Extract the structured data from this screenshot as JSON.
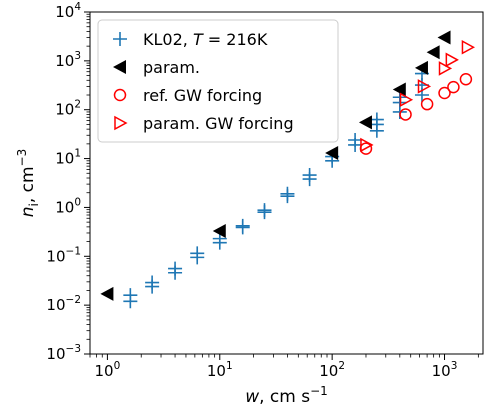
{
  "chart_data": {
    "type": "scatter",
    "xscale": "log",
    "yscale": "log",
    "xlim": [
      0.7,
      2200
    ],
    "ylim": [
      0.001,
      10000
    ],
    "xlabel": {
      "var": "w",
      "rest": ", cm s",
      "sup": "−1"
    },
    "ylabel": {
      "var": "n",
      "sub": "i",
      "rest": ", cm",
      "sup": "−3"
    },
    "xticks": [
      {
        "value": 1,
        "base": "10",
        "exp": "0"
      },
      {
        "value": 10,
        "base": "10",
        "exp": "1"
      },
      {
        "value": 100,
        "base": "10",
        "exp": "2"
      },
      {
        "value": 1000,
        "base": "10",
        "exp": "3"
      }
    ],
    "yticks": [
      {
        "value": 0.001,
        "base": "10",
        "exp": "−3"
      },
      {
        "value": 0.01,
        "base": "10",
        "exp": "−2"
      },
      {
        "value": 0.1,
        "base": "10",
        "exp": "−1"
      },
      {
        "value": 1,
        "base": "10",
        "exp": "0"
      },
      {
        "value": 10,
        "base": "10",
        "exp": "1"
      },
      {
        "value": 100,
        "base": "10",
        "exp": "2"
      },
      {
        "value": 1000,
        "base": "10",
        "exp": "3"
      },
      {
        "value": 10000,
        "base": "10",
        "exp": "4"
      }
    ],
    "grid": false,
    "legend_position": "top-left",
    "series": [
      {
        "name": "KL02, T = 216K",
        "legend": {
          "pre": "KL02, ",
          "var": "T",
          "post": " = 216K"
        },
        "marker": "plus",
        "color": "#1f77b4",
        "points": [
          [
            1.6,
            0.012
          ],
          [
            1.6,
            0.016
          ],
          [
            2.5,
            0.024
          ],
          [
            2.5,
            0.029
          ],
          [
            4.0,
            0.046
          ],
          [
            4.0,
            0.056
          ],
          [
            6.3,
            0.095
          ],
          [
            6.3,
            0.115
          ],
          [
            10,
            0.19
          ],
          [
            10,
            0.23
          ],
          [
            16,
            0.39
          ],
          [
            16,
            0.42
          ],
          [
            25,
            0.8
          ],
          [
            25,
            0.88
          ],
          [
            40,
            1.7
          ],
          [
            40,
            1.9
          ],
          [
            63,
            3.8
          ],
          [
            63,
            4.6
          ],
          [
            100,
            9
          ],
          [
            100,
            11
          ],
          [
            160,
            19
          ],
          [
            160,
            24
          ],
          [
            250,
            37
          ],
          [
            250,
            50
          ],
          [
            250,
            63
          ],
          [
            400,
            90
          ],
          [
            400,
            140
          ],
          [
            400,
            180
          ],
          [
            630,
            200
          ],
          [
            630,
            320
          ],
          [
            630,
            550
          ]
        ]
      },
      {
        "name": "param.",
        "legend": {
          "pre": "param.",
          "var": "",
          "post": ""
        },
        "marker": "triangle-left",
        "color": "#000000",
        "points": [
          [
            1.0,
            0.017
          ],
          [
            10,
            0.33
          ],
          [
            100,
            13
          ],
          [
            200,
            55
          ],
          [
            400,
            260
          ],
          [
            630,
            720
          ],
          [
            800,
            1500
          ],
          [
            1000,
            3000
          ]
        ]
      },
      {
        "name": "ref. GW forcing",
        "legend": {
          "pre": "ref. GW forcing",
          "var": "",
          "post": ""
        },
        "marker": "circle-open",
        "color": "#ff0000",
        "points": [
          [
            200,
            16
          ],
          [
            450,
            80
          ],
          [
            700,
            130
          ],
          [
            1000,
            220
          ],
          [
            1200,
            290
          ],
          [
            1550,
            420
          ]
        ]
      },
      {
        "name": "param. GW forcing",
        "legend": {
          "pre": "param. GW forcing",
          "var": "",
          "post": ""
        },
        "marker": "triangle-right-open",
        "color": "#ff0000",
        "points": [
          [
            200,
            19
          ],
          [
            450,
            160
          ],
          [
            650,
            300
          ],
          [
            1000,
            700
          ],
          [
            1150,
            1050
          ],
          [
            1600,
            1900
          ]
        ]
      }
    ]
  }
}
